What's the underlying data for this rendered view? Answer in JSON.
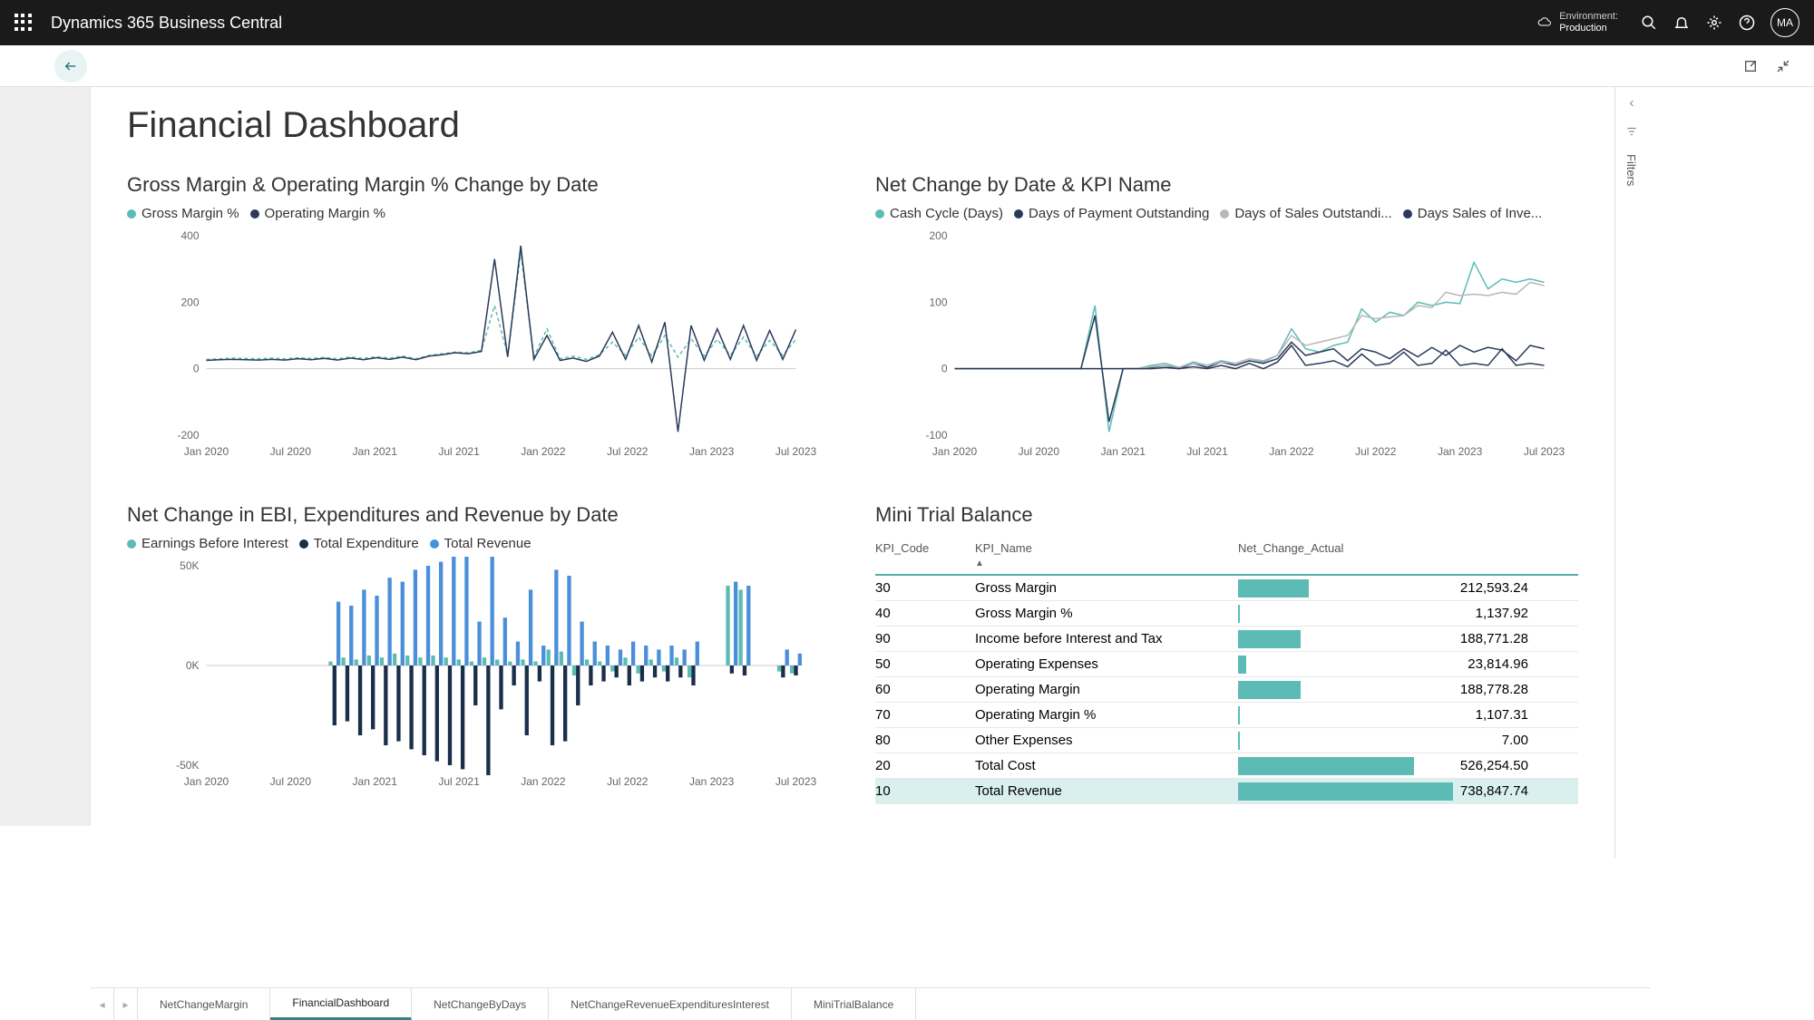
{
  "topbar": {
    "app_title": "Dynamics 365 Business Central",
    "env_label": "Environment:",
    "env_value": "Production",
    "avatar": "MA"
  },
  "page": {
    "title": "Financial Dashboard"
  },
  "filters_label": "Filters",
  "colors": {
    "teal": "#5cbcb5",
    "navy": "#2b3a5a",
    "grey": "#b8b8b8",
    "blue": "#4a90d9",
    "bar_fill": "#5cbcb5"
  },
  "chart1": {
    "title": "Gross Margin & Operating Margin % Change by Date",
    "legend": [
      {
        "label": "Gross Margin %",
        "color": "#5cbcb5"
      },
      {
        "label": "Operating Margin %",
        "color": "#2b3a5a"
      }
    ],
    "type": "line",
    "ylim": [
      -200,
      400
    ],
    "ytick_step": 200,
    "x_labels": [
      "Jan 2020",
      "Jul 2020",
      "Jan 2021",
      "Jul 2021",
      "Jan 2022",
      "Jul 2022",
      "Jan 2023",
      "Jul 2023"
    ],
    "gross": [
      28,
      30,
      32,
      31,
      30,
      32,
      30,
      33,
      31,
      34,
      30,
      35,
      31,
      36,
      32,
      38,
      30,
      40,
      45,
      50,
      48,
      55,
      190,
      40,
      350,
      35,
      120,
      30,
      38,
      28,
      42,
      80,
      40,
      95,
      38,
      100,
      35,
      90,
      38,
      88,
      40,
      95,
      38,
      85,
      40,
      88
    ],
    "operating": [
      25,
      27,
      28,
      27,
      26,
      28,
      26,
      30,
      27,
      31,
      26,
      32,
      27,
      33,
      28,
      35,
      27,
      38,
      42,
      48,
      45,
      52,
      330,
      35,
      370,
      28,
      100,
      25,
      32,
      22,
      38,
      110,
      28,
      130,
      20,
      140,
      -190,
      130,
      25,
      120,
      28,
      130,
      25,
      115,
      28,
      118
    ]
  },
  "chart2": {
    "title": "Net Change by Date & KPI Name",
    "legend": [
      {
        "label": "Cash Cycle (Days)",
        "color": "#5cbcb5"
      },
      {
        "label": "Days of Payment Outstanding",
        "color": "#2b3a5a"
      },
      {
        "label": "Days of Sales Outstandi...",
        "color": "#b8b8b8"
      },
      {
        "label": "Days Sales of Inve...",
        "color": "#2b3a5a"
      }
    ],
    "type": "line",
    "ylim": [
      -100,
      200
    ],
    "ytick_step": 100,
    "x_labels": [
      "Jan 2020",
      "Jul 2020",
      "Jan 2021",
      "Jul 2021",
      "Jan 2022",
      "Jul 2022",
      "Jan 2023",
      "Jul 2023"
    ],
    "cash": [
      0,
      0,
      0,
      0,
      0,
      0,
      0,
      0,
      0,
      0,
      95,
      -95,
      0,
      0,
      5,
      8,
      2,
      10,
      5,
      12,
      8,
      15,
      10,
      20,
      60,
      30,
      25,
      35,
      40,
      90,
      70,
      85,
      80,
      100,
      95,
      100,
      98,
      160,
      120,
      135,
      130,
      135,
      130
    ],
    "payment": [
      0,
      0,
      0,
      0,
      0,
      0,
      0,
      0,
      0,
      0,
      80,
      -80,
      0,
      0,
      2,
      5,
      0,
      8,
      2,
      10,
      5,
      12,
      8,
      15,
      40,
      20,
      25,
      30,
      12,
      30,
      25,
      15,
      30,
      18,
      32,
      20,
      35,
      25,
      32,
      28,
      12,
      35,
      30
    ],
    "sales": [
      0,
      0,
      0,
      0,
      0,
      0,
      0,
      0,
      0,
      0,
      0,
      0,
      0,
      0,
      3,
      5,
      2,
      8,
      5,
      10,
      8,
      15,
      12,
      20,
      50,
      35,
      40,
      45,
      50,
      80,
      75,
      78,
      80,
      95,
      92,
      115,
      110,
      112,
      110,
      115,
      112,
      130,
      125
    ],
    "inve": [
      0,
      0,
      0,
      0,
      0,
      0,
      0,
      0,
      0,
      0,
      0,
      0,
      0,
      0,
      0,
      2,
      0,
      3,
      0,
      5,
      0,
      8,
      0,
      10,
      35,
      5,
      8,
      12,
      3,
      22,
      5,
      8,
      25,
      5,
      8,
      28,
      5,
      8,
      5,
      30,
      5,
      8,
      5
    ]
  },
  "chart3": {
    "title": "Net Change in EBI, Expenditures and Revenue by Date",
    "legend": [
      {
        "label": "Earnings Before Interest",
        "color": "#5cbcb5"
      },
      {
        "label": "Total Expenditure",
        "color": "#1a2e4a"
      },
      {
        "label": "Total Revenue",
        "color": "#4a90d9"
      }
    ],
    "type": "grouped-bar",
    "ylim": [
      -50000,
      50000
    ],
    "ytick_step": 50000,
    "ytick_labels": [
      "-50K",
      "0K",
      "50K"
    ],
    "x_labels": [
      "Jan 2020",
      "Jul 2020",
      "Jan 2021",
      "Jul 2021",
      "Jan 2022",
      "Jul 2022",
      "Jan 2023",
      "Jul 2023"
    ],
    "ebi": [
      0,
      0,
      0,
      0,
      0,
      0,
      0,
      0,
      0,
      0,
      2,
      4,
      3,
      5,
      4,
      6,
      5,
      4,
      5,
      4,
      3,
      2,
      4,
      3,
      2,
      3,
      2,
      8,
      7,
      -5,
      3,
      2,
      -3,
      4,
      -4,
      3,
      -3,
      4,
      -6,
      0,
      0,
      40,
      38,
      0,
      0,
      -3,
      -4
    ],
    "exp": [
      0,
      0,
      0,
      0,
      0,
      0,
      0,
      0,
      0,
      0,
      -30,
      -28,
      -35,
      -32,
      -40,
      -38,
      -42,
      -45,
      -48,
      -50,
      -52,
      -20,
      -55,
      -22,
      -10,
      -35,
      -8,
      -40,
      -38,
      -20,
      -10,
      -8,
      -6,
      -10,
      -8,
      -6,
      -8,
      -6,
      -10,
      0,
      0,
      -4,
      -5,
      0,
      0,
      -6,
      -5
    ],
    "rev": [
      0,
      0,
      0,
      0,
      0,
      0,
      0,
      0,
      0,
      0,
      32,
      30,
      38,
      35,
      44,
      42,
      48,
      50,
      52,
      55,
      56,
      22,
      58,
      24,
      12,
      38,
      10,
      48,
      45,
      22,
      12,
      10,
      8,
      12,
      10,
      8,
      10,
      8,
      12,
      0,
      0,
      42,
      40,
      0,
      0,
      8,
      6
    ]
  },
  "table": {
    "title": "Mini Trial Balance",
    "columns": [
      "KPI_Code",
      "KPI_Name",
      "Net_Change_Actual"
    ],
    "max_value": 738847.74,
    "rows": [
      {
        "code": "30",
        "name": "Gross Margin",
        "value": 212593.24,
        "fmt": "212,593.24"
      },
      {
        "code": "40",
        "name": "Gross Margin %",
        "value": 1137.92,
        "fmt": "1,137.92"
      },
      {
        "code": "90",
        "name": "Income before Interest and Tax",
        "value": 188771.28,
        "fmt": "188,771.28"
      },
      {
        "code": "50",
        "name": "Operating Expenses",
        "value": 23814.96,
        "fmt": "23,814.96"
      },
      {
        "code": "60",
        "name": "Operating Margin",
        "value": 188778.28,
        "fmt": "188,778.28"
      },
      {
        "code": "70",
        "name": "Operating Margin %",
        "value": 1107.31,
        "fmt": "1,107.31"
      },
      {
        "code": "80",
        "name": "Other Expenses",
        "value": 7.0,
        "fmt": "7.00"
      },
      {
        "code": "20",
        "name": "Total Cost",
        "value": 526254.5,
        "fmt": "526,254.50"
      },
      {
        "code": "10",
        "name": "Total Revenue",
        "value": 738847.74,
        "fmt": "738,847.74"
      }
    ]
  },
  "tabs": {
    "items": [
      {
        "label": "NetChangeMargin",
        "active": false
      },
      {
        "label": "FinancialDashboard",
        "active": true
      },
      {
        "label": "NetChangeByDays",
        "active": false
      },
      {
        "label": "NetChangeRevenueExpendituresInterest",
        "active": false
      },
      {
        "label": "MiniTrialBalance",
        "active": false
      }
    ]
  }
}
